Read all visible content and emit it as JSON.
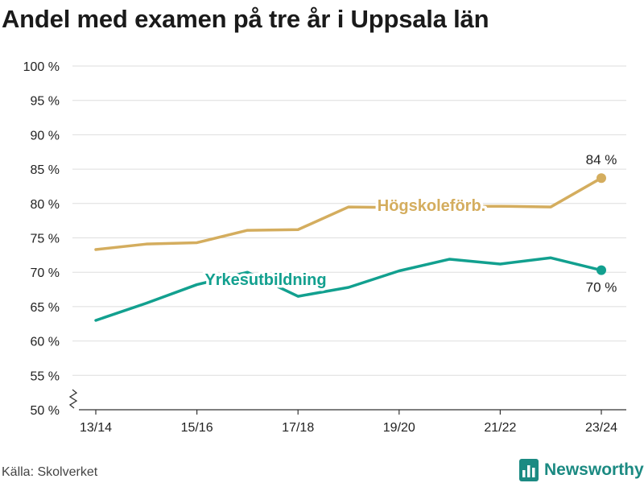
{
  "title": "Andel med examen på tre år i Uppsala län",
  "source": "Källa: Skolverket",
  "brand": {
    "name": "Newsworthy",
    "icon": "bar-chart-logo-icon",
    "color": "#1b8a82"
  },
  "chart_data": {
    "type": "line",
    "x": [
      "13/14",
      "14/15",
      "15/16",
      "16/17",
      "17/18",
      "18/19",
      "19/20",
      "20/21",
      "21/22",
      "22/23",
      "23/24"
    ],
    "x_tick_labels": [
      "13/14",
      "15/16",
      "17/18",
      "19/20",
      "21/22",
      "23/24"
    ],
    "y_ticks": [
      50,
      55,
      60,
      65,
      70,
      75,
      80,
      85,
      90,
      95,
      100
    ],
    "y_tick_labels": [
      "50 %",
      "55 %",
      "60 %",
      "65 %",
      "70 %",
      "75 %",
      "80 %",
      "85 %",
      "90 %",
      "95 %",
      "100 %"
    ],
    "ylim": [
      50,
      100
    ],
    "y_axis_break": true,
    "grid": true,
    "series": [
      {
        "name": "Högskoleförb.",
        "color": "#d4ad5e",
        "values": [
          73.3,
          74.1,
          74.3,
          76.1,
          76.2,
          79.5,
          79.4,
          79.6,
          79.6,
          79.5,
          83.7
        ],
        "end_label": "84 %",
        "end_label_position": "above"
      },
      {
        "name": "Yrkesutbildning",
        "color": "#12a08f",
        "values": [
          63.0,
          65.5,
          68.2,
          70.0,
          66.5,
          67.8,
          70.2,
          71.9,
          71.2,
          72.1,
          70.3
        ],
        "end_label": "70 %",
        "end_label_position": "below"
      }
    ]
  }
}
